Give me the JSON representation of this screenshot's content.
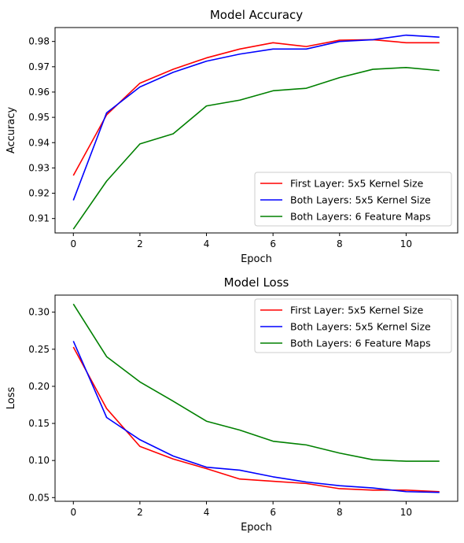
{
  "chart_data": [
    {
      "type": "line",
      "title": "Model Accuracy",
      "xlabel": "Epoch",
      "ylabel": "Accuracy",
      "xlim": [
        -0.55,
        11.55
      ],
      "ylim": [
        0.9043,
        0.9855
      ],
      "xticks": [
        0,
        2,
        4,
        6,
        8,
        10
      ],
      "yticks": [
        0.91,
        0.92,
        0.93,
        0.94,
        0.95,
        0.96,
        0.97,
        0.98
      ],
      "grid": false,
      "legend_position": "lower-right",
      "x": [
        0,
        1,
        2,
        3,
        4,
        5,
        6,
        7,
        8,
        9,
        10,
        11
      ],
      "series": [
        {
          "name": "First Layer: 5x5 Kernel Size",
          "color": "#ff0000",
          "values": [
            0.927,
            0.951,
            0.9635,
            0.969,
            0.9735,
            0.977,
            0.9795,
            0.978,
            0.9805,
            0.9807,
            0.9795,
            0.9795
          ]
        },
        {
          "name": "Both Layers: 5x5 Kernel Size",
          "color": "#0000ff",
          "values": [
            0.9172,
            0.9518,
            0.962,
            0.9678,
            0.9722,
            0.975,
            0.977,
            0.977,
            0.98,
            0.9807,
            0.9825,
            0.9817
          ]
        },
        {
          "name": "Both Layers: 6 Feature Maps",
          "color": "#008000",
          "values": [
            0.9058,
            0.9248,
            0.9395,
            0.9435,
            0.9545,
            0.9568,
            0.9605,
            0.9615,
            0.9657,
            0.969,
            0.9697,
            0.9685
          ]
        }
      ]
    },
    {
      "type": "line",
      "title": "Model Loss",
      "xlabel": "Epoch",
      "ylabel": "Loss",
      "xlim": [
        -0.55,
        11.55
      ],
      "ylim": [
        0.045,
        0.323
      ],
      "xticks": [
        0,
        2,
        4,
        6,
        8,
        10
      ],
      "yticks": [
        0.05,
        0.1,
        0.15,
        0.2,
        0.25,
        0.3
      ],
      "ytick_labels": [
        "0.05",
        "0.10",
        "0.15",
        "0.20",
        "0.25",
        "0.30"
      ],
      "grid": false,
      "legend_position": "upper-right",
      "x": [
        0,
        1,
        2,
        3,
        4,
        5,
        6,
        7,
        8,
        9,
        10,
        11
      ],
      "series": [
        {
          "name": "First Layer: 5x5 Kernel Size",
          "color": "#ff0000",
          "values": [
            0.253,
            0.17,
            0.119,
            0.102,
            0.089,
            0.075,
            0.072,
            0.069,
            0.062,
            0.06,
            0.06,
            0.058
          ]
        },
        {
          "name": "Both Layers: 5x5 Kernel Size",
          "color": "#0000ff",
          "values": [
            0.261,
            0.158,
            0.128,
            0.106,
            0.091,
            0.087,
            0.078,
            0.071,
            0.066,
            0.063,
            0.058,
            0.057
          ]
        },
        {
          "name": "Both Layers: 6 Feature Maps",
          "color": "#008000",
          "values": [
            0.311,
            0.24,
            0.206,
            0.18,
            0.153,
            0.141,
            0.126,
            0.121,
            0.11,
            0.101,
            0.099,
            0.099
          ]
        }
      ]
    }
  ]
}
